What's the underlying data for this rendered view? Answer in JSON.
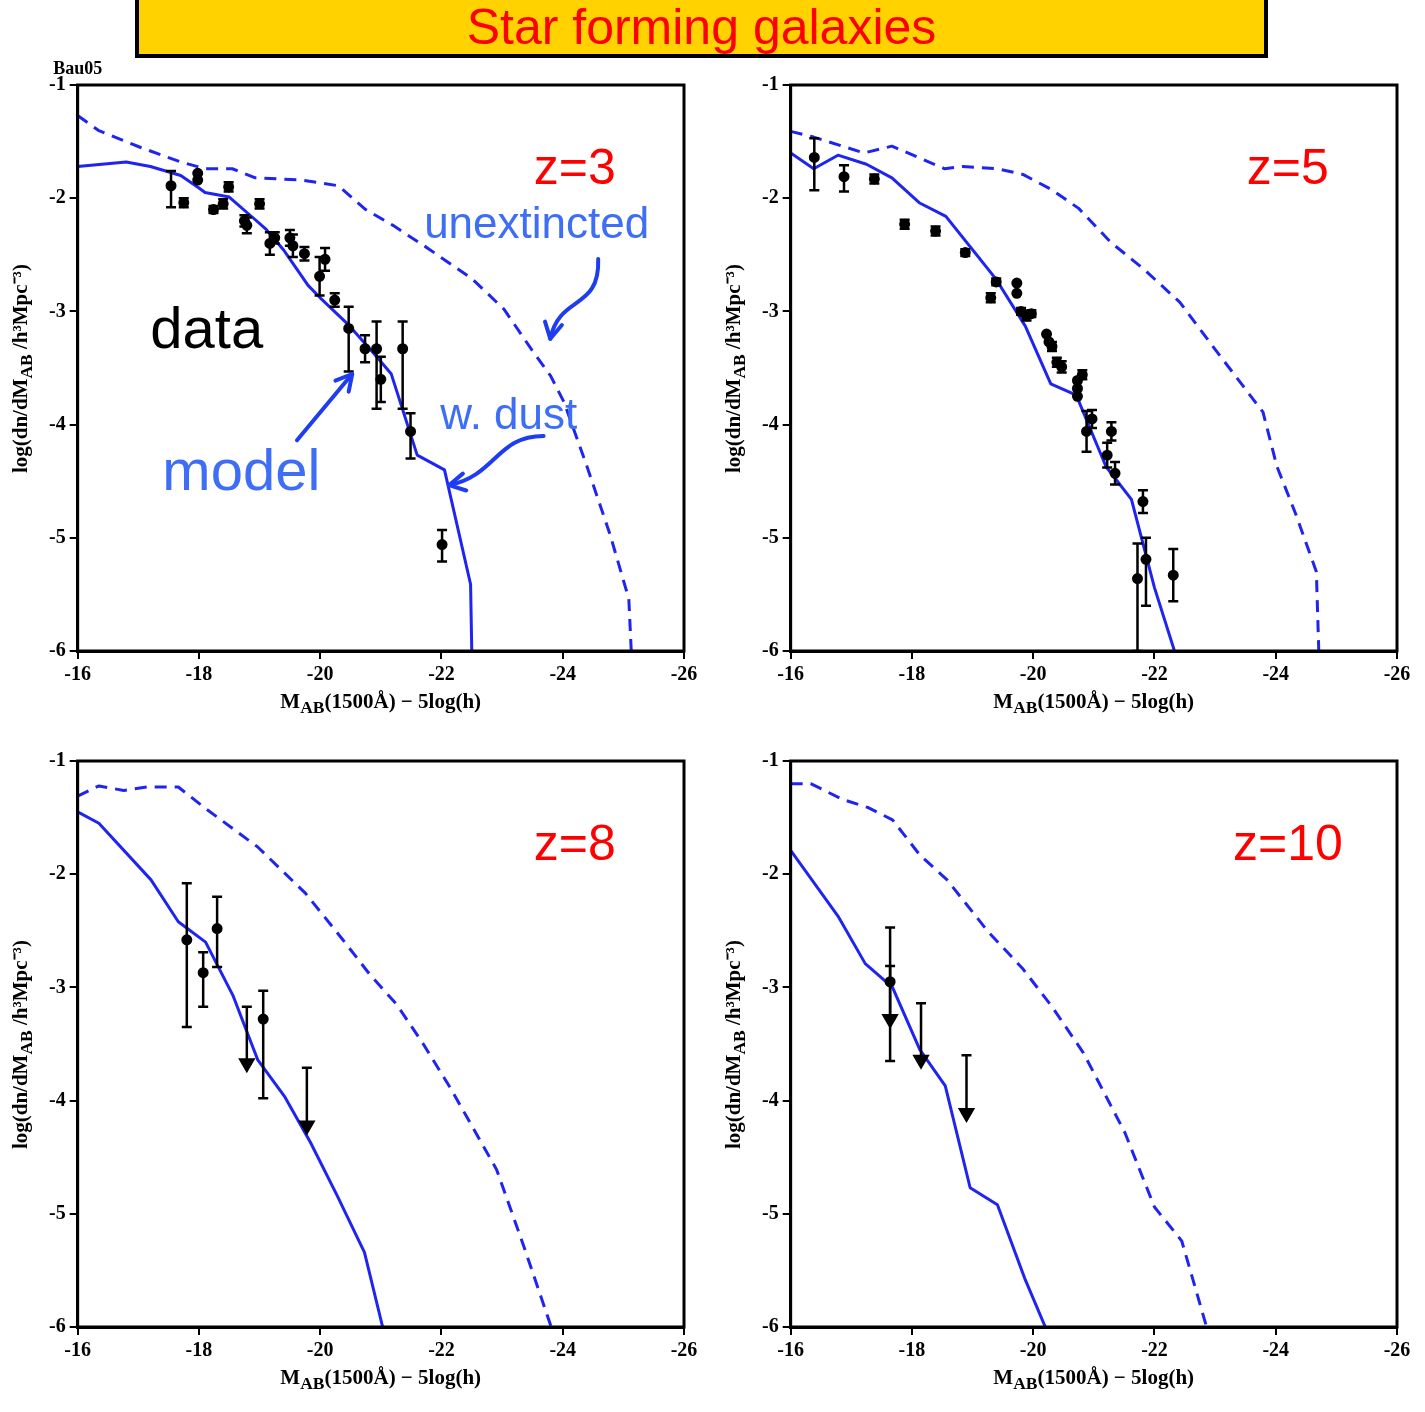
{
  "chart_data": [
    {
      "type": "line",
      "title": "Star forming galaxies",
      "xlabel": "M$_{AB}$(1500Å) − 5log(h)",
      "ylabel": "log(dn/dM$_{AB}$ /h³Mpc⁻³)",
      "annotations": [
        "z=3",
        "Bau05",
        "unextincted",
        "w. dust",
        "model",
        "data"
      ],
      "xlim": [
        -16,
        -26
      ],
      "ylim": [
        -6,
        -1
      ],
      "xticks": [
        -16,
        -18,
        -20,
        -22,
        -24,
        -26
      ],
      "yticks": [
        -6,
        -5,
        -4,
        -3,
        -2,
        -1
      ],
      "series": [
        {
          "type": "line",
          "color": "#1f24f0",
          "line_style": "solid",
          "x": [
            -16,
            -16.8,
            -17.2,
            -17.7,
            -18,
            -18.1,
            -18.5,
            -19.1,
            -19.4,
            -19.8,
            -20,
            -20.45,
            -20.9,
            -21.17,
            -21.6,
            -22.05,
            -22.48,
            -22.5
          ],
          "values": [
            -1.72,
            -1.68,
            -1.72,
            -1.8,
            -1.91,
            -1.95,
            -1.99,
            -2.27,
            -2.46,
            -2.77,
            -2.88,
            -3.11,
            -3.38,
            -3.55,
            -4.27,
            -4.4,
            -5.41,
            -6
          ]
        },
        {
          "type": "line",
          "color": "#1f24f0",
          "line_style": "dashed",
          "x": [
            -16,
            -16.34,
            -17.03,
            -17.7,
            -18.1,
            -18.55,
            -18.93,
            -19.7,
            -20.3,
            -20.75,
            -21.2,
            -21.74,
            -22.5,
            -23.03,
            -23.49,
            -23.8,
            -24.02,
            -24.4,
            -24.78,
            -25.09,
            -25.13
          ],
          "values": [
            -1.27,
            -1.4,
            -1.55,
            -1.68,
            -1.74,
            -1.74,
            -1.82,
            -1.84,
            -1.89,
            -2.1,
            -2.24,
            -2.43,
            -2.71,
            -2.98,
            -3.34,
            -3.57,
            -3.8,
            -4.37,
            -4.97,
            -5.54,
            -6
          ]
        },
        {
          "type": "scatter",
          "color": "#000000",
          "marker": "circle",
          "x": [
            -17.54,
            -17.75,
            -17.98,
            -17.98,
            -18.24,
            -18.4,
            -18.49,
            -18.75,
            -18.79,
            -19.0,
            -19.17,
            -19.25,
            -19.5,
            -19.55,
            -19.74,
            -19.99,
            -20.08,
            -20.24,
            -20.47,
            -20.74,
            -20.93,
            -21.0,
            -21.36,
            -21.49,
            -22.01
          ],
          "values": [
            -1.89,
            -2.04,
            -1.78,
            -1.84,
            -2.1,
            -2.05,
            -1.9,
            -2.2,
            -2.24,
            -2.05,
            -2.4,
            -2.35,
            -2.35,
            -2.42,
            -2.49,
            -2.69,
            -2.54,
            -2.9,
            -3.15,
            -3.33,
            -3.33,
            -3.6,
            -3.33,
            -4.06,
            -5.06
          ],
          "errors": [
            [
              -2.08,
              -1.76
            ],
            [
              -2.08,
              -2.0
            ],
            null,
            null,
            [
              -2.13,
              -2.07
            ],
            [
              -2.09,
              -2.01
            ],
            [
              -1.94,
              -1.86
            ],
            [
              -2.25,
              -2.15
            ],
            [
              -2.31,
              -2.17
            ],
            [
              -2.09,
              -2.01
            ],
            [
              -2.5,
              -2.3
            ],
            [
              -2.4,
              -2.3
            ],
            [
              -2.42,
              -2.28
            ],
            [
              -2.52,
              -2.32
            ],
            [
              -2.55,
              -2.43
            ],
            [
              -2.86,
              -2.52
            ],
            [
              -2.64,
              -2.44
            ],
            [
              -2.96,
              -2.84
            ],
            [
              -3.53,
              -2.96
            ],
            [
              -3.45,
              -3.21
            ],
            [
              -3.86,
              -3.09
            ],
            [
              -3.8,
              -3.4
            ],
            [
              -3.86,
              -3.09
            ],
            [
              -4.3,
              -3.9
            ],
            [
              -5.21,
              -4.93
            ]
          ]
        }
      ]
    },
    {
      "type": "line",
      "xlabel": "M$_{AB}$(1500Å) − 5log(h)",
      "ylabel": "log(dn/dM$_{AB}$ /h³Mpc⁻³)",
      "annotations": [
        "z=5"
      ],
      "xlim": [
        -16,
        -26
      ],
      "ylim": [
        -6,
        -1
      ],
      "xticks": [
        -16,
        -18,
        -20,
        -22,
        -24,
        -26
      ],
      "yticks": [
        -6,
        -5,
        -4,
        -3,
        -2,
        -1
      ],
      "series": [
        {
          "type": "line",
          "color": "#1f24f0",
          "line_style": "solid",
          "x": [
            -16,
            -16.38,
            -16.78,
            -17.25,
            -17.67,
            -18.12,
            -18.56,
            -19.38,
            -19.87,
            -20.29,
            -20.71,
            -21.2,
            -21.62,
            -22.0,
            -22.33
          ],
          "values": [
            -1.6,
            -1.74,
            -1.62,
            -1.7,
            -1.82,
            -2.04,
            -2.16,
            -2.71,
            -3.13,
            -3.64,
            -3.74,
            -4.37,
            -4.66,
            -5.44,
            -6
          ]
        },
        {
          "type": "line",
          "color": "#1f24f0",
          "line_style": "dashed",
          "x": [
            -16,
            -16.38,
            -17.21,
            -17.67,
            -18.54,
            -18.84,
            -19.41,
            -19.83,
            -20.29,
            -20.75,
            -21.28,
            -21.81,
            -22.42,
            -22.95,
            -23.79,
            -24.02,
            -24.33,
            -24.67,
            -24.71
          ],
          "values": [
            -1.41,
            -1.46,
            -1.6,
            -1.54,
            -1.74,
            -1.72,
            -1.74,
            -1.79,
            -1.92,
            -2.09,
            -2.39,
            -2.62,
            -2.92,
            -3.3,
            -3.89,
            -4.37,
            -4.79,
            -5.3,
            -6
          ]
        },
        {
          "type": "scatter",
          "color": "#000000",
          "marker": "circle",
          "x": [
            -16.39,
            -16.88,
            -17.38,
            -17.88,
            -18.39,
            -18.88,
            -19.3,
            -19.39,
            -19.73,
            -19.73,
            -19.8,
            -19.89,
            -19.97,
            -20.22,
            -20.26,
            -20.31,
            -20.39,
            -20.47,
            -20.73,
            -20.73,
            -20.73,
            -20.81,
            -20.97,
            -20.88,
            -21.29,
            -21.22,
            -21.35,
            -21.81,
            -21.72,
            -21.86,
            -22.31
          ],
          "values": [
            -1.64,
            -1.81,
            -1.83,
            -2.23,
            -2.29,
            -2.48,
            -2.88,
            -2.74,
            -2.75,
            -2.84,
            -3.0,
            -3.04,
            -3.02,
            -3.2,
            -3.27,
            -3.31,
            -3.45,
            -3.49,
            -3.68,
            -3.75,
            -3.61,
            -3.56,
            -3.95,
            -4.06,
            -4.06,
            -4.27,
            -4.43,
            -4.68,
            -5.36,
            -5.19,
            -5.33
          ],
          "errors": [
            [
              -1.93,
              -1.47
            ],
            [
              -1.94,
              -1.71
            ],
            [
              -1.87,
              -1.79
            ],
            [
              -2.27,
              -2.19
            ],
            [
              -2.33,
              -2.25
            ],
            [
              -2.51,
              -2.45
            ],
            [
              -2.92,
              -2.84
            ],
            [
              -2.77,
              -2.71
            ],
            null,
            null,
            [
              -3.03,
              -2.97
            ],
            [
              -3.08,
              -3.0
            ],
            [
              -3.05,
              -2.99
            ],
            null,
            null,
            [
              -3.35,
              -3.27
            ],
            [
              -3.49,
              -3.41
            ],
            [
              -3.54,
              -3.44
            ],
            null,
            null,
            null,
            [
              -3.6,
              -3.52
            ],
            [
              -4.03,
              -3.87
            ],
            [
              -4.24,
              -3.88
            ],
            [
              -4.14,
              -3.98
            ],
            [
              -4.38,
              -4.16
            ],
            [
              -4.53,
              -4.33
            ],
            [
              -4.78,
              -4.58
            ],
            [
              -6,
              -5.05
            ],
            [
              -5.6,
              -5.0
            ],
            [
              -5.56,
              -5.1
            ]
          ]
        }
      ]
    },
    {
      "type": "line",
      "xlabel": "M$_{AB}$(1500Å) − 5log(h)",
      "ylabel": "log(dn/dM$_{AB}$ /h³Mpc⁻³)",
      "annotations": [
        "z=8"
      ],
      "xlim": [
        -16,
        -26
      ],
      "ylim": [
        -6,
        -1
      ],
      "xticks": [
        -16,
        -18,
        -20,
        -22,
        -24,
        -26
      ],
      "yticks": [
        -6,
        -5,
        -4,
        -3,
        -2,
        -1
      ],
      "series": [
        {
          "type": "line",
          "color": "#1f24f0",
          "line_style": "solid",
          "x": [
            -16,
            -16.35,
            -17.21,
            -17.66,
            -18.11,
            -18.56,
            -18.97,
            -19.42,
            -19.84,
            -20.28,
            -20.73,
            -21.03
          ],
          "values": [
            -1.45,
            -1.55,
            -2.05,
            -2.42,
            -2.6,
            -3.07,
            -3.64,
            -3.97,
            -4.37,
            -4.84,
            -5.34,
            -6
          ]
        },
        {
          "type": "line",
          "color": "#1f24f0",
          "line_style": "dashed",
          "x": [
            -16,
            -16.35,
            -16.76,
            -17.14,
            -17.66,
            -18.11,
            -18.97,
            -19.76,
            -20.36,
            -20.81,
            -21.26,
            -21.7,
            -22.16,
            -22.91,
            -23.36,
            -23.81
          ],
          "values": [
            -1.31,
            -1.22,
            -1.26,
            -1.23,
            -1.23,
            -1.42,
            -1.76,
            -2.17,
            -2.57,
            -2.88,
            -3.15,
            -3.5,
            -3.9,
            -4.61,
            -5.29,
            -6
          ]
        },
        {
          "type": "scatter",
          "color": "#000000",
          "marker": "circle",
          "x": [
            -17.8,
            -18.07,
            -18.3,
            -19.06
          ],
          "values": [
            -2.58,
            -2.87,
            -2.48,
            -3.28
          ],
          "errors": [
            [
              -3.35,
              -2.08
            ],
            [
              -3.17,
              -2.69
            ],
            [
              -2.82,
              -2.2
            ],
            [
              -3.98,
              -3.03
            ]
          ]
        },
        {
          "type": "scatter",
          "color": "#000000",
          "marker": "triangle",
          "x": [
            -18.79,
            -19.78
          ],
          "values": [
            -3.67,
            -4.22
          ],
          "errors": [
            [
              -3.67,
              -3.17
            ],
            [
              -4.22,
              -3.71
            ]
          ]
        }
      ]
    },
    {
      "type": "line",
      "xlabel": "M$_{AB}$(1500Å) − 5log(h)",
      "ylabel": "log(dn/dM$_{AB}$ /h³Mpc⁻³)",
      "annotations": [
        "z=10"
      ],
      "xlim": [
        -16,
        -26
      ],
      "ylim": [
        -6,
        -1
      ],
      "xticks": [
        -16,
        -18,
        -20,
        -22,
        -24,
        -26
      ],
      "yticks": [
        -6,
        -5,
        -4,
        -3,
        -2,
        -1
      ],
      "series": [
        {
          "type": "line",
          "color": "#1f24f0",
          "line_style": "solid",
          "x": [
            -16,
            -16.78,
            -17.23,
            -17.68,
            -18.13,
            -18.55,
            -18.96,
            -19.41,
            -19.86,
            -20.2
          ],
          "values": [
            -1.79,
            -2.37,
            -2.79,
            -3.0,
            -3.55,
            -3.87,
            -4.77,
            -4.92,
            -5.57,
            -6
          ]
        },
        {
          "type": "line",
          "color": "#1f24f0",
          "line_style": "dashed",
          "x": [
            -16,
            -16.33,
            -16.86,
            -17.27,
            -17.68,
            -18.13,
            -18.58,
            -19.26,
            -19.82,
            -20.31,
            -20.83,
            -21.51,
            -22.0,
            -22.45,
            -22.86
          ],
          "values": [
            -1.2,
            -1.2,
            -1.34,
            -1.41,
            -1.52,
            -1.83,
            -2.05,
            -2.51,
            -2.83,
            -3.17,
            -3.58,
            -4.28,
            -4.94,
            -5.24,
            -6
          ]
        },
        {
          "type": "scatter",
          "color": "#000000",
          "marker": "circle",
          "x": [
            -17.64
          ],
          "values": [
            -2.95
          ],
          "errors": [
            [
              -3.65,
              -2.47
            ]
          ]
        },
        {
          "type": "scatter",
          "color": "#000000",
          "marker": "triangle",
          "x": [
            -17.64,
            -18.15,
            -18.9
          ],
          "values": [
            -3.28,
            -3.64,
            -4.11
          ],
          "errors": [
            [
              -3.28,
              -2.81
            ],
            [
              -3.64,
              -3.14
            ],
            [
              -4.11,
              -3.6
            ]
          ]
        }
      ]
    }
  ]
}
